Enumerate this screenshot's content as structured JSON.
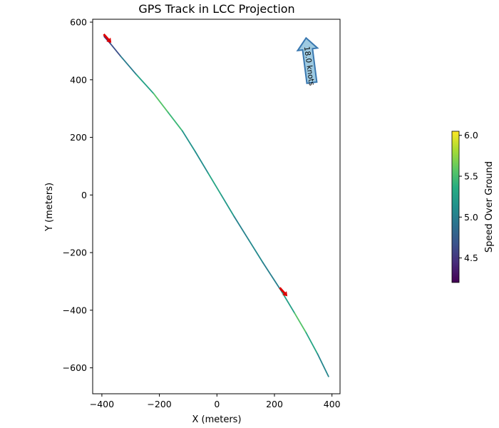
{
  "chart_data": {
    "type": "line",
    "title": "GPS Track in LCC Projection",
    "xlabel": "X (meters)",
    "ylabel": "Y (meters)",
    "xlim": [
      -432,
      428
    ],
    "ylim": [
      -690,
      610
    ],
    "x_ticks": [
      -400,
      -200,
      0,
      200,
      400
    ],
    "y_ticks": [
      600,
      400,
      200,
      0,
      -200,
      -400,
      -600
    ],
    "x_tick_labels": [
      "−400",
      "−200",
      "0",
      "200",
      "400"
    ],
    "y_tick_labels": [
      "600",
      "400",
      "200",
      "0",
      "−200",
      "−400",
      "−600"
    ],
    "grid": false,
    "track": {
      "points": [
        {
          "x": -392,
          "y": 550,
          "speed": 4.5
        },
        {
          "x": -370,
          "y": 525,
          "speed": 4.4
        },
        {
          "x": -335,
          "y": 482,
          "speed": 4.9
        },
        {
          "x": -280,
          "y": 418,
          "speed": 5.05
        },
        {
          "x": -220,
          "y": 352,
          "speed": 5.5
        },
        {
          "x": -170,
          "y": 287,
          "speed": 5.6
        },
        {
          "x": -120,
          "y": 222,
          "speed": 5.3
        },
        {
          "x": -75,
          "y": 150,
          "speed": 5.0
        },
        {
          "x": -30,
          "y": 75,
          "speed": 5.2
        },
        {
          "x": 15,
          "y": 0,
          "speed": 5.4
        },
        {
          "x": 60,
          "y": -75,
          "speed": 5.0
        },
        {
          "x": 110,
          "y": -155,
          "speed": 5.05
        },
        {
          "x": 160,
          "y": -235,
          "speed": 5.1
        },
        {
          "x": 225,
          "y": -335,
          "speed": 4.9
        },
        {
          "x": 270,
          "y": -410,
          "speed": 5.6
        },
        {
          "x": 310,
          "y": -478,
          "speed": 5.5
        },
        {
          "x": 350,
          "y": -552,
          "speed": 5.1
        },
        {
          "x": 388,
          "y": -630,
          "speed": 5.0
        }
      ]
    },
    "markers": [
      {
        "x": -382,
        "y": 545,
        "color": "#dd0000"
      },
      {
        "x": 230,
        "y": -335,
        "color": "#dd0000"
      }
    ],
    "speed_arrow": {
      "label": "18.0 knots",
      "tail": {
        "x": 330,
        "y": 390
      },
      "head": {
        "x": 310,
        "y": 545
      },
      "fill": "#9ecae1",
      "stroke": "#3a78b0"
    },
    "colorbar": {
      "label": "Speed Over Ground",
      "min": 4.2,
      "max": 6.05,
      "ticks": [
        6.0,
        5.5,
        5.0,
        4.5
      ],
      "tick_labels": [
        "6.0",
        "5.5",
        "5.0",
        "4.5"
      ],
      "colormap": "viridis"
    }
  }
}
